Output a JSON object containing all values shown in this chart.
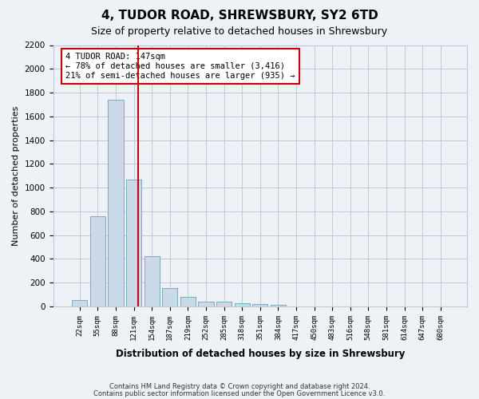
{
  "title": "4, TUDOR ROAD, SHREWSBURY, SY2 6TD",
  "subtitle": "Size of property relative to detached houses in Shrewsbury",
  "xlabel": "Distribution of detached houses by size in Shrewsbury",
  "ylabel": "Number of detached properties",
  "bin_labels": [
    "22sqm",
    "55sqm",
    "88sqm",
    "121sqm",
    "154sqm",
    "187sqm",
    "219sqm",
    "252sqm",
    "285sqm",
    "318sqm",
    "351sqm",
    "384sqm",
    "417sqm",
    "450sqm",
    "483sqm",
    "516sqm",
    "548sqm",
    "581sqm",
    "614sqm",
    "647sqm",
    "680sqm"
  ],
  "bar_values": [
    55,
    760,
    1740,
    1070,
    420,
    155,
    80,
    40,
    40,
    25,
    20,
    15,
    0,
    0,
    0,
    0,
    0,
    0,
    0,
    0,
    0
  ],
  "bar_color": "#c9d9e8",
  "bar_edgecolor": "#7aaabf",
  "vline_color": "#cc0000",
  "annotation_text": "4 TUDOR ROAD: 147sqm\n← 78% of detached houses are smaller (3,416)\n21% of semi-detached houses are larger (935) →",
  "annotation_box_color": "#ffffff",
  "annotation_box_edgecolor": "#cc0000",
  "ylim": [
    0,
    2200
  ],
  "yticks": [
    0,
    200,
    400,
    600,
    800,
    1000,
    1200,
    1400,
    1600,
    1800,
    2000,
    2200
  ],
  "footer_line1": "Contains HM Land Registry data © Crown copyright and database right 2024.",
  "footer_line2": "Contains public sector information licensed under the Open Government Licence v3.0.",
  "bg_color": "#eef2f7",
  "plot_bg_color": "#eef2f7",
  "grid_color": "#c0c8d8"
}
